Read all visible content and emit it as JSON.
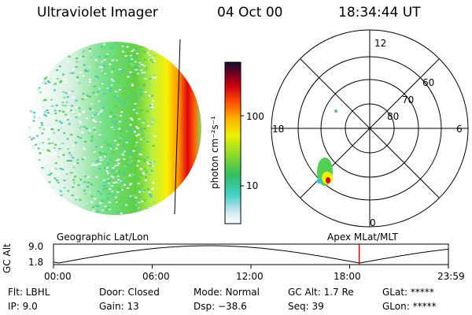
{
  "header": {
    "title": "Ultraviolet Imager",
    "date": "04 Oct 00",
    "time": "18:34:44 UT"
  },
  "colorbar": {
    "unit_label": "photon cm⁻²s⁻¹",
    "tick_100": "100",
    "tick_10": "10"
  },
  "polar": {
    "lat_labels": [
      "60",
      "70",
      "80"
    ],
    "mlt_labels": {
      "top": "12",
      "left": "18",
      "right": "6",
      "bottom": "0"
    }
  },
  "timeline": {
    "axis_title": "GC Alt",
    "y_ticks": [
      "9.0",
      "1.8"
    ],
    "left_label": "Geographic Lat/Lon",
    "right_label": "Apex MLat/MLT",
    "x_ticks": [
      "00:00",
      "06:00",
      "12:00",
      "18:00",
      "23:59"
    ],
    "current_time_hours": 18.58
  },
  "info": {
    "filter": "Flt: LBHL",
    "ip": "IP:  9.0",
    "door": "Door: Closed",
    "gain": "Gain: 13",
    "mode": "Mode: Normal",
    "dsp": "Dsp:  −38.6",
    "gc_alt": "GC Alt: 1.7 Re",
    "seq": "Seq: 39",
    "glat": "GLat: *****",
    "glon": "GLon: *****"
  }
}
